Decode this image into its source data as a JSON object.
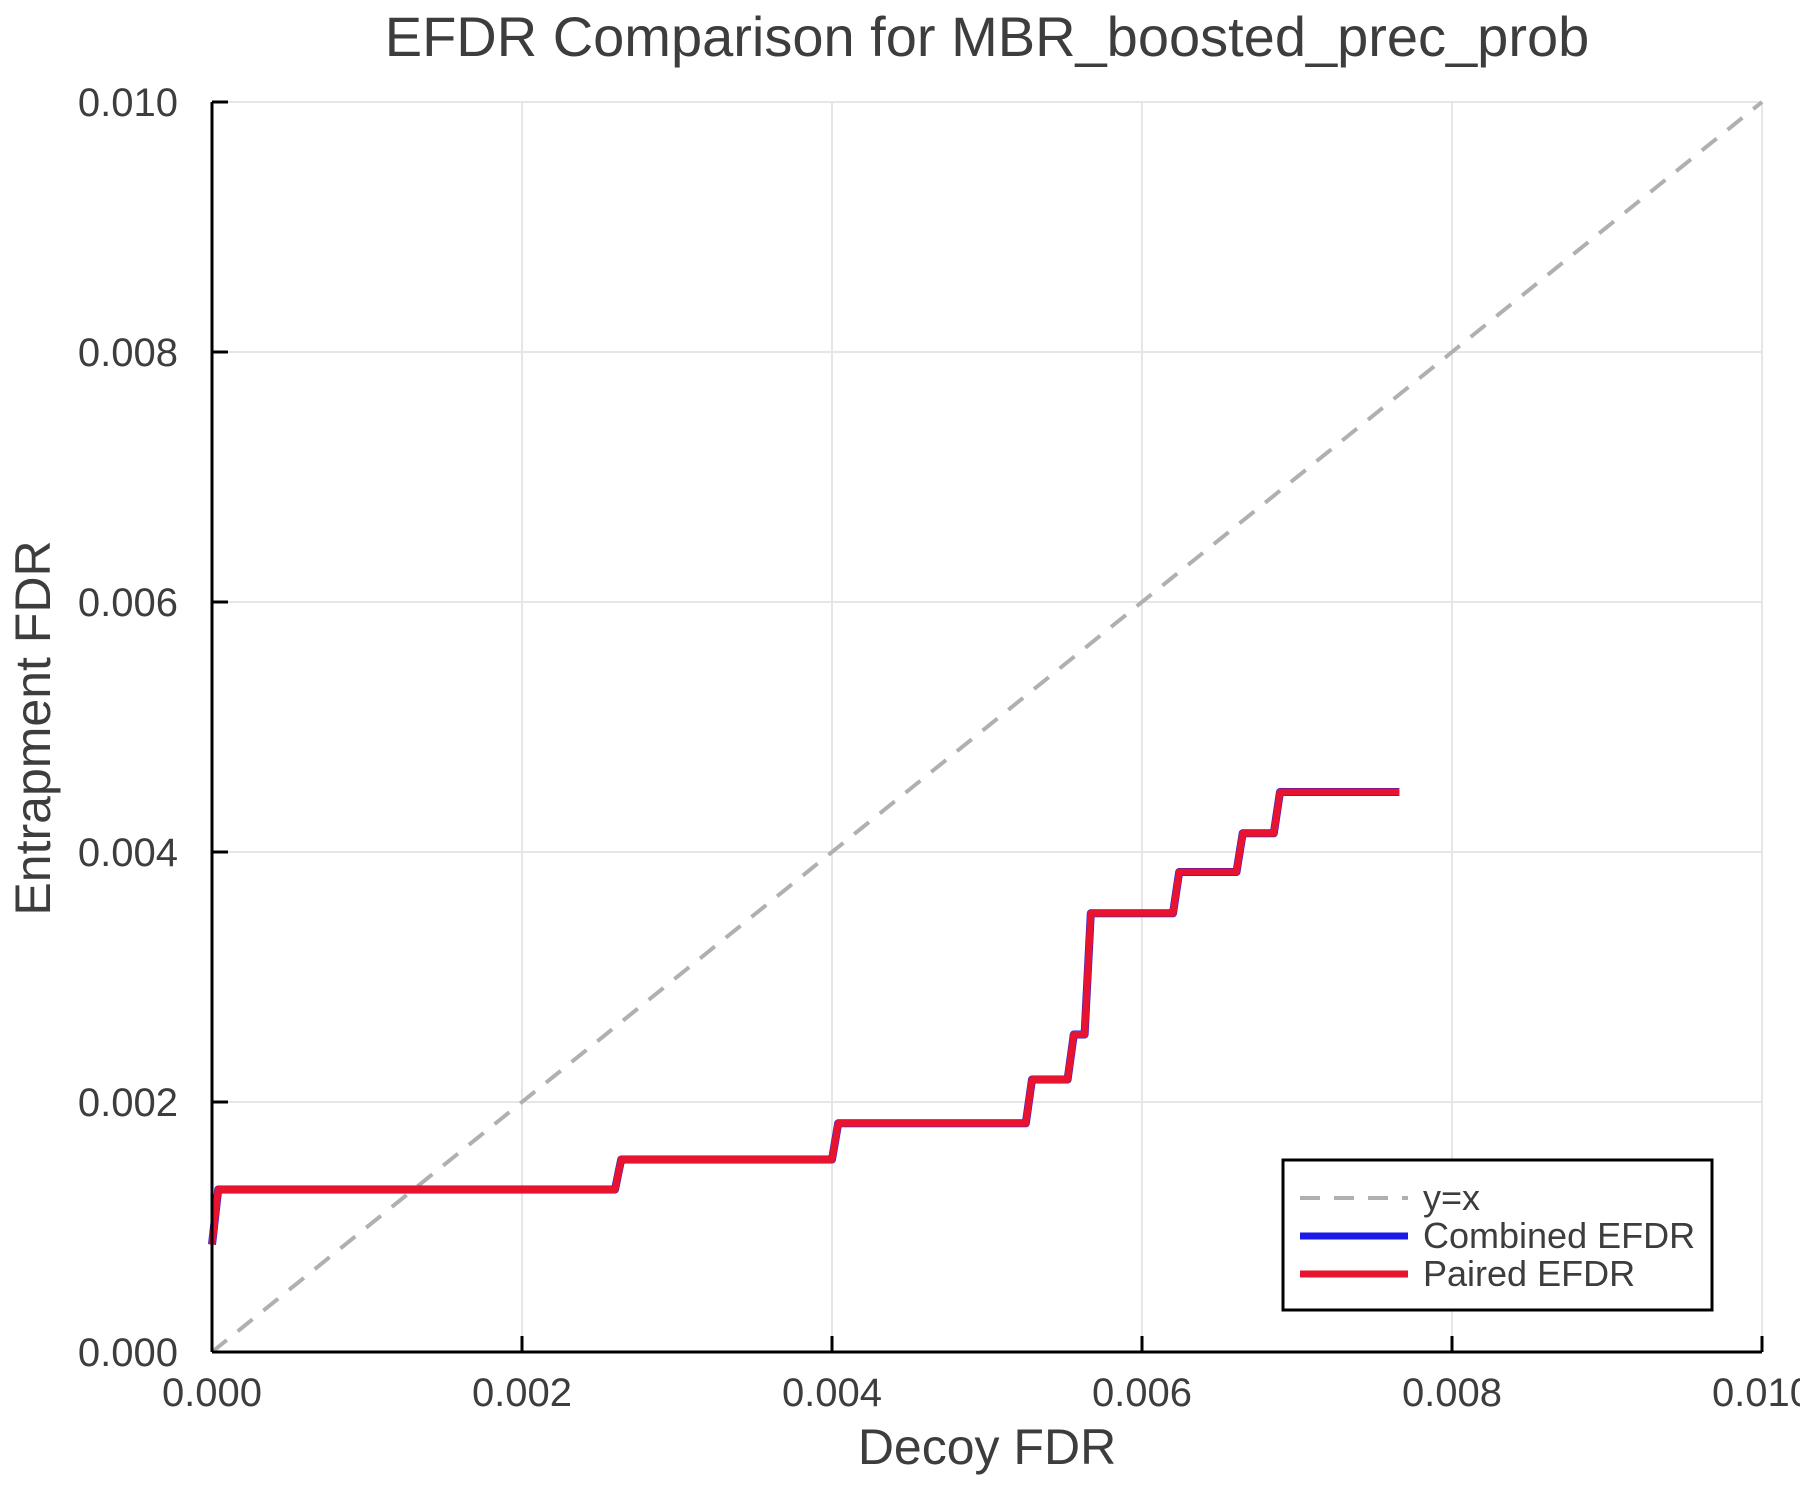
{
  "chart_data": {
    "type": "line",
    "title": "EFDR Comparison for MBR_boosted_prec_prob",
    "xlabel": "Decoy FDR",
    "ylabel": "Entrapment FDR",
    "xlim": [
      0.0,
      0.01
    ],
    "ylim": [
      0.0,
      0.01
    ],
    "xticks": [
      0.0,
      0.002,
      0.004,
      0.006,
      0.008,
      0.01
    ],
    "yticks": [
      0.0,
      0.002,
      0.004,
      0.006,
      0.008,
      0.01
    ],
    "tick_decimals": 3,
    "grid": true,
    "legend_position": "bottom-right",
    "background_color": "#ffffff",
    "grid_color": "#e6e6e6",
    "axis_color": "#000000",
    "text_color": "#3d3d3d",
    "series": [
      {
        "name": "y=x",
        "style": "dashed",
        "color": "#b0b0b0",
        "points": [
          [
            0.0,
            0.0
          ],
          [
            0.01,
            0.01
          ]
        ]
      },
      {
        "name": "Combined EFDR",
        "style": "solid",
        "color": "#1a1ae6",
        "points": [
          [
            0.0,
            0.00086
          ],
          [
            4e-05,
            0.0013
          ],
          [
            0.0026,
            0.0013
          ],
          [
            0.00264,
            0.00154
          ],
          [
            0.004,
            0.00154
          ],
          [
            0.00404,
            0.00183
          ],
          [
            0.00525,
            0.00183
          ],
          [
            0.00529,
            0.00218
          ],
          [
            0.00552,
            0.00218
          ],
          [
            0.00556,
            0.00254
          ],
          [
            0.00563,
            0.00254
          ],
          [
            0.00567,
            0.00351
          ],
          [
            0.0062,
            0.00351
          ],
          [
            0.00624,
            0.00384
          ],
          [
            0.00661,
            0.00384
          ],
          [
            0.00665,
            0.00415
          ],
          [
            0.00685,
            0.00415
          ],
          [
            0.00689,
            0.00448
          ],
          [
            0.00766,
            0.00448
          ]
        ]
      },
      {
        "name": "Paired EFDR",
        "style": "solid",
        "color": "#e8142f",
        "points": [
          [
            0.0,
            0.00086
          ],
          [
            4e-05,
            0.0013
          ],
          [
            0.0026,
            0.0013
          ],
          [
            0.00264,
            0.00154
          ],
          [
            0.004,
            0.00154
          ],
          [
            0.00404,
            0.00183
          ],
          [
            0.00525,
            0.00183
          ],
          [
            0.00529,
            0.00218
          ],
          [
            0.00552,
            0.00218
          ],
          [
            0.00556,
            0.00254
          ],
          [
            0.00563,
            0.00254
          ],
          [
            0.00567,
            0.00351
          ],
          [
            0.0062,
            0.00351
          ],
          [
            0.00624,
            0.00384
          ],
          [
            0.00661,
            0.00384
          ],
          [
            0.00665,
            0.00415
          ],
          [
            0.00685,
            0.00415
          ],
          [
            0.00689,
            0.00448
          ],
          [
            0.00766,
            0.00448
          ]
        ]
      }
    ]
  }
}
